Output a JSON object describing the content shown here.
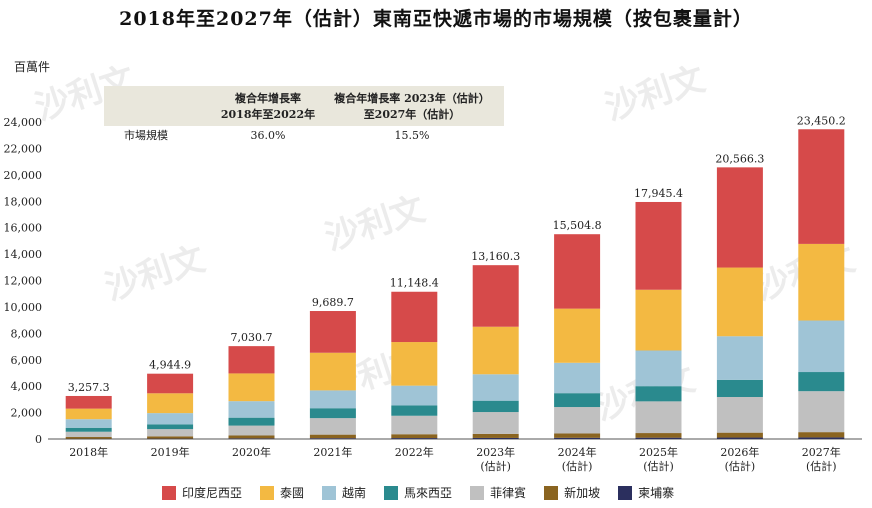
{
  "title": "2018年至2027年（估計）東南亞快遞市場的市場規模（按包裹量計）",
  "unit_label": "百萬件",
  "watermark": "沙利文",
  "cagr_table": {
    "row_label": "市場規模",
    "col1_line1": "複合年增長率",
    "col1_line2": "2018年至2022年",
    "col2_line1": "複合年增長率 2023年（估計）",
    "col2_line2": "至2027年（估計）",
    "val1": "36.0%",
    "val2": "15.5%"
  },
  "chart_data": {
    "type": "bar",
    "stacked": true,
    "categories": [
      "2018年",
      "2019年",
      "2020年",
      "2021年",
      "2022年",
      "2023年（估計）",
      "2024年（估計）",
      "2025年（估計）",
      "2026年（估計）",
      "2027年（估計）"
    ],
    "category_lines": [
      [
        "2018年"
      ],
      [
        "2019年"
      ],
      [
        "2020年"
      ],
      [
        "2021年"
      ],
      [
        "2022年"
      ],
      [
        "2023年",
        "(估計)"
      ],
      [
        "2024年",
        "(估計)"
      ],
      [
        "2025年",
        "(估計)"
      ],
      [
        "2026年",
        "(估計)"
      ],
      [
        "2027年",
        "(估計)"
      ]
    ],
    "totals": [
      3257.3,
      4944.9,
      7030.7,
      9689.7,
      11148.4,
      13160.3,
      15504.8,
      17945.4,
      20566.3,
      23450.2
    ],
    "total_labels": [
      "3,257.3",
      "4,944.9",
      "7,030.7",
      "9,689.7",
      "11,148.4",
      "13,160.3",
      "15,504.8",
      "17,945.4",
      "20,566.3",
      "23,450.2"
    ],
    "ylim": [
      0,
      24000
    ],
    "yticks": [
      0,
      2000,
      4000,
      6000,
      8000,
      10000,
      12000,
      14000,
      16000,
      18000,
      20000,
      22000,
      24000
    ],
    "ytick_labels": [
      "0",
      "2,000",
      "4,000",
      "6,000",
      "8,000",
      "10,000",
      "12,000",
      "14,000",
      "16,000",
      "18,000",
      "20,000",
      "22,000",
      "24,000"
    ],
    "series": [
      {
        "name": "柬埔寨",
        "color": "#2b2f5e",
        "values": [
          20,
          30,
          45,
          60,
          70,
          80,
          90,
          100,
          110,
          120
        ]
      },
      {
        "name": "新加坡",
        "color": "#8a6420",
        "values": [
          130,
          170,
          220,
          270,
          290,
          310,
          330,
          350,
          370,
          400
        ]
      },
      {
        "name": "菲律賓",
        "color": "#c0c0c0",
        "values": [
          400,
          550,
          750,
          1250,
          1400,
          1650,
          2000,
          2400,
          2700,
          3100
        ]
      },
      {
        "name": "馬來西亞",
        "color": "#2a8a8e",
        "values": [
          300,
          360,
          600,
          750,
          780,
          860,
          1050,
          1150,
          1300,
          1450
        ]
      },
      {
        "name": "越南",
        "color": "#9fc4d6",
        "values": [
          650,
          850,
          1250,
          1350,
          1500,
          2000,
          2300,
          2700,
          3300,
          3900
        ]
      },
      {
        "name": "泰國",
        "color": "#f3b942",
        "values": [
          800,
          1500,
          2100,
          2850,
          3300,
          3600,
          4100,
          4600,
          5200,
          5800
        ]
      },
      {
        "name": "印度尼西亞",
        "color": "#d64a4a",
        "values": [
          957.3,
          1484.9,
          2065.7,
          3159.7,
          3808.4,
          4660.3,
          5634.8,
          6645.4,
          7586.3,
          8680.2
        ]
      }
    ],
    "legend_order": [
      "印度尼西亞",
      "泰國",
      "越南",
      "馬來西亞",
      "菲律賓",
      "新加坡",
      "柬埔寨"
    ]
  }
}
